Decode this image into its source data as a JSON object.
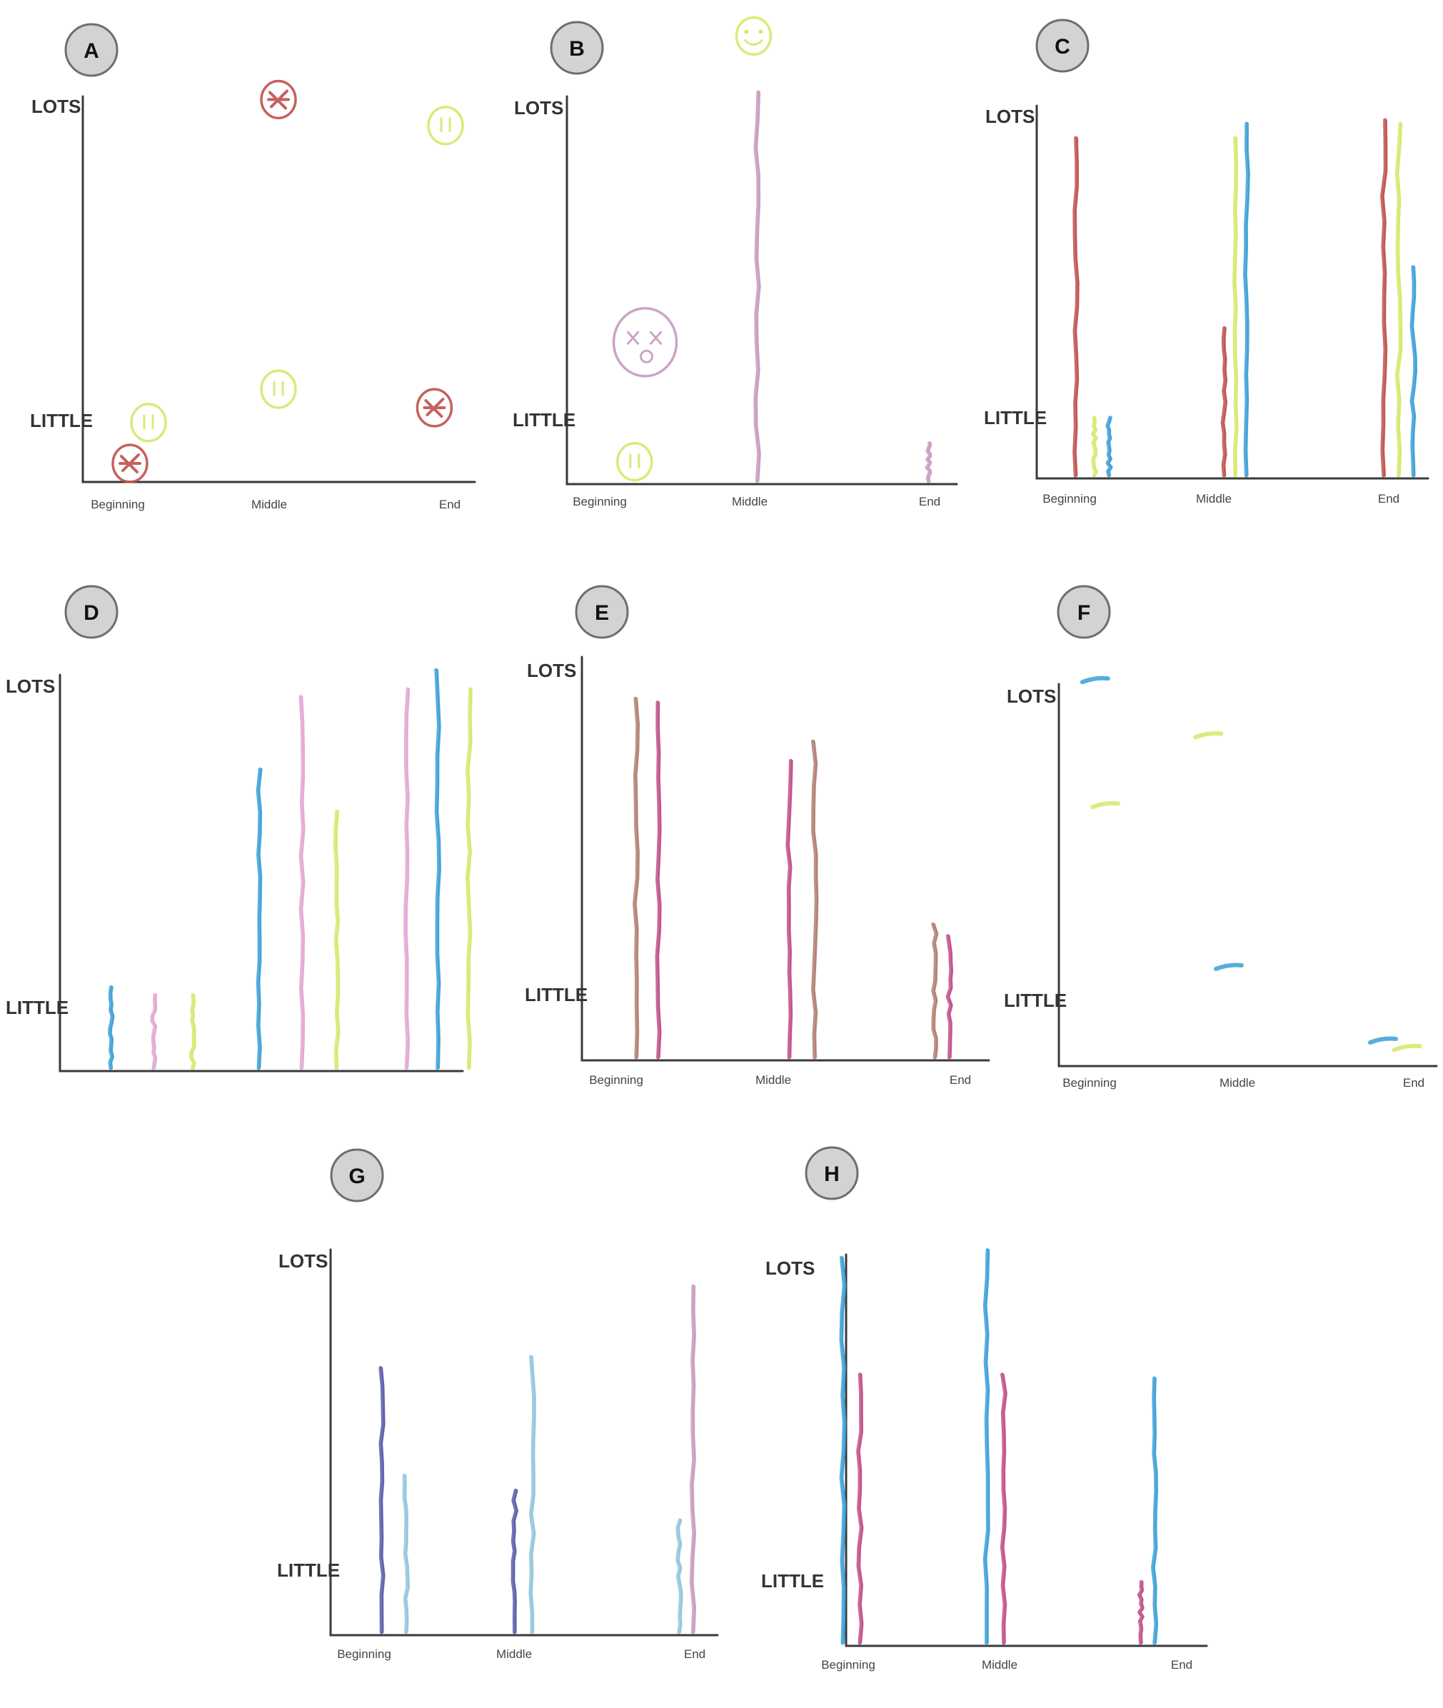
{
  "colors": {
    "red": "#c0504d",
    "green": "#d6e86a",
    "purple": "#c79ac0",
    "blue": "#3a9fd6",
    "magenta": "#c04d8a",
    "brown": "#b07e72",
    "indigo": "#5a5aa8",
    "pink": "#e2a6d2",
    "lightblue": "#8dc6de",
    "badge_fill": "#d3d3d3"
  },
  "panels": [
    {
      "letter": "A",
      "y_top_label": "LOTS",
      "y_bottom_label": "LITTLE",
      "x_ticks": [
        "Beginning",
        "Middle",
        "End"
      ],
      "marks": [
        {
          "kind": "face",
          "color": "red",
          "period": 0.1,
          "level": 0.05,
          "face": "filled"
        },
        {
          "kind": "face",
          "color": "green",
          "period": 0.15,
          "level": 0.16,
          "face": "neutral"
        },
        {
          "kind": "face",
          "color": "red",
          "period": 0.5,
          "level": 1.03,
          "face": "filled"
        },
        {
          "kind": "face",
          "color": "green",
          "period": 0.5,
          "level": 0.25,
          "face": "neutral"
        },
        {
          "kind": "face",
          "color": "red",
          "period": 0.92,
          "level": 0.2,
          "face": "filled"
        },
        {
          "kind": "face",
          "color": "green",
          "period": 0.95,
          "level": 0.96,
          "face": "neutral"
        }
      ]
    },
    {
      "letter": "B",
      "y_top_label": "LOTS",
      "y_bottom_label": "LITTLE",
      "x_ticks": [
        "Beginning",
        "Middle",
        "End"
      ],
      "marks": [
        {
          "kind": "face",
          "color": "purple",
          "period": 0.15,
          "level": 0.38,
          "face": "dead"
        },
        {
          "kind": "face",
          "color": "green",
          "period": 0.12,
          "level": 0.06,
          "face": "neutral"
        },
        {
          "kind": "face",
          "color": "green",
          "period": 0.46,
          "level": 1.2,
          "face": "happy"
        },
        {
          "kind": "bar",
          "color": "purple",
          "period": 0.47,
          "level": 1.05
        },
        {
          "kind": "bar",
          "color": "purple",
          "period": 0.96,
          "level": 0.11
        }
      ]
    },
    {
      "letter": "C",
      "y_top_label": "LOTS",
      "y_bottom_label": "LITTLE",
      "x_ticks": [
        "Beginning",
        "Middle",
        "End"
      ],
      "marks": [
        {
          "kind": "bar",
          "color": "red",
          "period": 0.06,
          "level": 0.95
        },
        {
          "kind": "bar",
          "color": "green",
          "period": 0.11,
          "level": 0.17
        },
        {
          "kind": "bar",
          "color": "blue",
          "period": 0.15,
          "level": 0.17
        },
        {
          "kind": "bar",
          "color": "red",
          "period": 0.46,
          "level": 0.42
        },
        {
          "kind": "bar",
          "color": "green",
          "period": 0.49,
          "level": 0.95
        },
        {
          "kind": "bar",
          "color": "blue",
          "period": 0.52,
          "level": 0.99
        },
        {
          "kind": "bar",
          "color": "red",
          "period": 0.89,
          "level": 1.0
        },
        {
          "kind": "bar",
          "color": "green",
          "period": 0.93,
          "level": 0.99
        },
        {
          "kind": "bar",
          "color": "blue",
          "period": 0.97,
          "level": 0.59
        }
      ]
    },
    {
      "letter": "D",
      "y_top_label": "LOTS",
      "y_bottom_label": "LITTLE",
      "x_ticks": [],
      "marks": [
        {
          "kind": "bar",
          "color": "blue",
          "period": 0.11,
          "level": 0.22
        },
        {
          "kind": "bar",
          "color": "pink",
          "period": 0.22,
          "level": 0.2
        },
        {
          "kind": "bar",
          "color": "green",
          "period": 0.32,
          "level": 0.2
        },
        {
          "kind": "bar",
          "color": "blue",
          "period": 0.49,
          "level": 0.79
        },
        {
          "kind": "bar",
          "color": "pink",
          "period": 0.6,
          "level": 0.98
        },
        {
          "kind": "bar",
          "color": "green",
          "period": 0.69,
          "level": 0.68
        },
        {
          "kind": "bar",
          "color": "pink",
          "period": 0.87,
          "level": 1.0
        },
        {
          "kind": "bar",
          "color": "blue",
          "period": 0.95,
          "level": 1.05
        },
        {
          "kind": "bar",
          "color": "green",
          "period": 1.03,
          "level": 1.0
        }
      ]
    },
    {
      "letter": "E",
      "y_top_label": "LOTS",
      "y_bottom_label": "LITTLE",
      "x_ticks": [
        "Beginning",
        "Middle",
        "End"
      ],
      "marks": [
        {
          "kind": "bar",
          "color": "brown",
          "period": 0.09,
          "level": 0.93
        },
        {
          "kind": "bar",
          "color": "magenta",
          "period": 0.15,
          "level": 0.92
        },
        {
          "kind": "bar",
          "color": "magenta",
          "period": 0.51,
          "level": 0.77
        },
        {
          "kind": "bar",
          "color": "brown",
          "period": 0.58,
          "level": 0.82
        },
        {
          "kind": "bar",
          "color": "brown",
          "period": 0.91,
          "level": 0.35
        },
        {
          "kind": "bar",
          "color": "magenta",
          "period": 0.95,
          "level": 0.32
        }
      ]
    },
    {
      "letter": "F",
      "y_top_label": "LOTS",
      "y_bottom_label": "LITTLE",
      "x_ticks": [
        "Beginning",
        "Middle",
        "End"
      ],
      "marks": [
        {
          "kind": "dash",
          "color": "blue",
          "period": 0.06,
          "level": 1.05
        },
        {
          "kind": "dash",
          "color": "green",
          "period": 0.09,
          "level": 0.71
        },
        {
          "kind": "dash",
          "color": "green",
          "period": 0.39,
          "level": 0.9
        },
        {
          "kind": "dash",
          "color": "blue",
          "period": 0.45,
          "level": 0.27
        },
        {
          "kind": "dash",
          "color": "blue",
          "period": 0.9,
          "level": 0.07
        },
        {
          "kind": "dash",
          "color": "green",
          "period": 0.97,
          "level": 0.05
        }
      ]
    },
    {
      "letter": "G",
      "y_top_label": "LOTS",
      "y_bottom_label": "LITTLE",
      "x_ticks": [
        "Beginning",
        "Middle",
        "End"
      ],
      "marks": [
        {
          "kind": "bar",
          "color": "indigo",
          "period": 0.07,
          "level": 0.72
        },
        {
          "kind": "bar",
          "color": "lightblue",
          "period": 0.14,
          "level": 0.43
        },
        {
          "kind": "bar",
          "color": "indigo",
          "period": 0.45,
          "level": 0.39
        },
        {
          "kind": "bar",
          "color": "lightblue",
          "period": 0.5,
          "level": 0.75
        },
        {
          "kind": "bar",
          "color": "lightblue",
          "period": 0.92,
          "level": 0.31
        },
        {
          "kind": "bar",
          "color": "purple",
          "period": 0.96,
          "level": 0.94
        }
      ]
    },
    {
      "letter": "H",
      "y_top_label": "LOTS",
      "y_bottom_label": "LITTLE",
      "x_ticks": [
        "Beginning",
        "Middle",
        "End"
      ],
      "marks": [
        {
          "kind": "bar",
          "color": "blue",
          "period": 0.0,
          "level": 1.03
        },
        {
          "kind": "bar",
          "color": "magenta",
          "period": 0.05,
          "level": 0.72
        },
        {
          "kind": "bar",
          "color": "blue",
          "period": 0.42,
          "level": 1.05
        },
        {
          "kind": "bar",
          "color": "magenta",
          "period": 0.47,
          "level": 0.72
        },
        {
          "kind": "bar",
          "color": "magenta",
          "period": 0.87,
          "level": 0.17
        },
        {
          "kind": "bar",
          "color": "blue",
          "period": 0.91,
          "level": 0.71
        }
      ]
    }
  ]
}
